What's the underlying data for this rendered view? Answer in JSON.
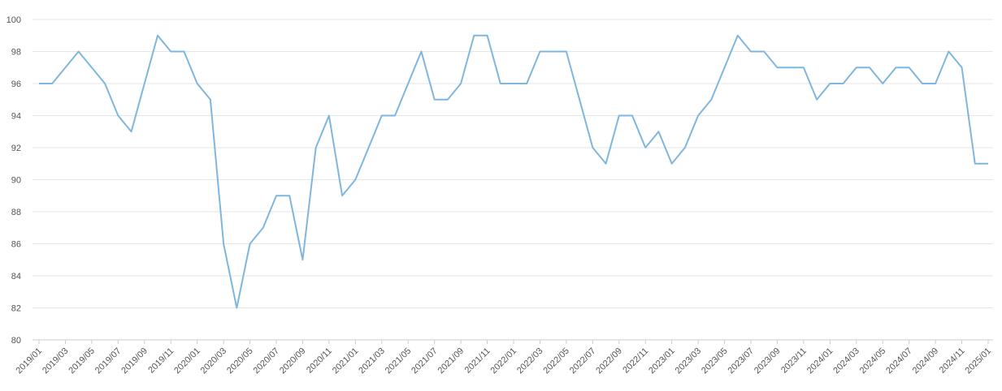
{
  "chart_data": {
    "type": "line",
    "title": "",
    "xlabel": "",
    "ylabel": "",
    "ylim": [
      80,
      100
    ],
    "yticks": [
      80,
      82,
      84,
      86,
      88,
      90,
      92,
      94,
      96,
      98,
      100
    ],
    "grid": true,
    "legend": "none",
    "colors": {
      "line": "#7fb6e0",
      "grid": "#e6e6e6",
      "axis": "#cccccc",
      "tick_text": "#555555"
    },
    "x_tick_labels": [
      "2019/01",
      "2019/03",
      "2019/05",
      "2019/07",
      "2019/09",
      "2019/11",
      "2020/01",
      "2020/03",
      "2020/05",
      "2020/07",
      "2020/09",
      "2020/11",
      "2021/01",
      "2021/03",
      "2021/05",
      "2021/07",
      "2021/09",
      "2021/11",
      "2022/01",
      "2022/03",
      "2022/05",
      "2022/07",
      "2022/09",
      "2022/11",
      "2023/01",
      "2023/03",
      "2023/05",
      "2023/07",
      "2023/09",
      "2023/11",
      "2024/01",
      "2024/03",
      "2024/05",
      "2024/07",
      "2024/09",
      "2024/11",
      "2025/01"
    ],
    "series": [
      {
        "x": [
          "2019/01",
          "2019/02",
          "2019/03",
          "2019/04",
          "2019/05",
          "2019/06",
          "2019/07",
          "2019/08",
          "2019/09",
          "2019/10",
          "2019/11",
          "2019/12",
          "2020/01",
          "2020/02",
          "2020/03",
          "2020/04",
          "2020/05",
          "2020/06",
          "2020/07",
          "2020/08",
          "2020/09",
          "2020/10",
          "2020/11",
          "2020/12",
          "2021/01",
          "2021/02",
          "2021/03",
          "2021/04",
          "2021/05",
          "2021/06",
          "2021/07",
          "2021/08",
          "2021/09",
          "2021/10",
          "2021/11",
          "2021/12",
          "2022/01",
          "2022/02",
          "2022/03",
          "2022/04",
          "2022/05",
          "2022/06",
          "2022/07",
          "2022/08",
          "2022/09",
          "2022/10",
          "2022/11",
          "2022/12",
          "2023/01",
          "2023/02",
          "2023/03",
          "2023/04",
          "2023/05",
          "2023/06",
          "2023/07",
          "2023/08",
          "2023/09",
          "2023/10",
          "2023/11",
          "2023/12",
          "2024/01",
          "2024/02",
          "2024/03",
          "2024/04",
          "2024/05",
          "2024/06",
          "2024/07",
          "2024/08",
          "2024/09",
          "2024/10",
          "2024/11",
          "2024/12",
          "2025/01"
        ],
        "values": [
          96,
          96,
          97,
          98,
          97,
          96,
          94,
          93,
          96,
          99,
          98,
          98,
          96,
          95,
          86,
          82,
          86,
          87,
          89,
          89,
          85,
          92,
          94,
          89,
          90,
          92,
          94,
          94,
          96,
          98,
          95,
          95,
          96,
          99,
          99,
          96,
          96,
          96,
          98,
          98,
          98,
          95,
          92,
          91,
          94,
          94,
          92,
          93,
          91,
          92,
          94,
          95,
          97,
          99,
          98,
          98,
          97,
          97,
          97,
          95,
          96,
          96,
          97,
          97,
          96,
          97,
          97,
          96,
          96,
          98,
          97,
          91,
          91
        ]
      }
    ]
  }
}
